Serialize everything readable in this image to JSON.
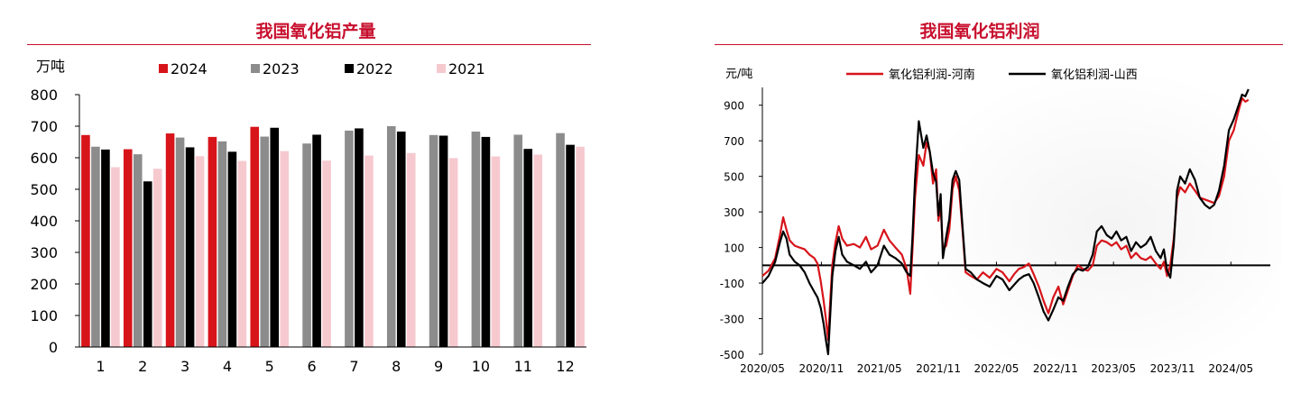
{
  "chart_data": [
    {
      "type": "bar",
      "title": "我国氧化铝产量",
      "ylabel": "万吨",
      "xlabel": "",
      "ylim": [
        0,
        800
      ],
      "yticks": [
        "0",
        "100",
        "200",
        "300",
        "400",
        "500",
        "600",
        "700",
        "800"
      ],
      "categories": [
        "1",
        "2",
        "3",
        "4",
        "5",
        "6",
        "7",
        "8",
        "9",
        "10",
        "11",
        "12"
      ],
      "legend_position": "top",
      "series": [
        {
          "name": "2024",
          "color": "#d7141a",
          "values": [
            672,
            627,
            677,
            666,
            698,
            null,
            null,
            null,
            null,
            null,
            null,
            null
          ]
        },
        {
          "name": "2023",
          "color": "#8c8c8c",
          "values": [
            635,
            611,
            664,
            652,
            667,
            645,
            686,
            700,
            672,
            683,
            673,
            678
          ]
        },
        {
          "name": "2022",
          "color": "#000000",
          "values": [
            626,
            525,
            633,
            619,
            695,
            673,
            693,
            683,
            670,
            666,
            628,
            641
          ]
        },
        {
          "name": "2021",
          "color": "#f6c9cf",
          "values": [
            570,
            565,
            605,
            590,
            621,
            591,
            607,
            615,
            599,
            604,
            610,
            635
          ]
        }
      ]
    },
    {
      "type": "line",
      "title": "我国氧化铝利润",
      "ylabel": "元/吨",
      "xlabel": "",
      "ylim": [
        -500,
        1000
      ],
      "yticks": [
        "-500",
        "-300",
        "-100",
        "100",
        "300",
        "500",
        "700",
        "900"
      ],
      "xlim": [
        "2020-05",
        "2024-09"
      ],
      "xticks": [
        "2020/05",
        "2020/11",
        "2021/05",
        "2021/11",
        "2022/05",
        "2022/11",
        "2023/05",
        "2023/11",
        "2024/05"
      ],
      "legend_position": "top",
      "series": [
        {
          "name": "氧化铝利润-河南",
          "color": "#d7141a",
          "points": [
            [
              "2020-05-01",
              -60
            ],
            [
              "2020-05-20",
              -30
            ],
            [
              "2020-06-10",
              40
            ],
            [
              "2020-06-25",
              170
            ],
            [
              "2020-07-05",
              270
            ],
            [
              "2020-07-15",
              200
            ],
            [
              "2020-07-25",
              140
            ],
            [
              "2020-08-10",
              110
            ],
            [
              "2020-08-25",
              100
            ],
            [
              "2020-09-10",
              90
            ],
            [
              "2020-09-25",
              60
            ],
            [
              "2020-10-10",
              40
            ],
            [
              "2020-10-20",
              10
            ],
            [
              "2020-10-30",
              -90
            ],
            [
              "2020-11-08",
              -200
            ],
            [
              "2020-11-15",
              -300
            ],
            [
              "2020-11-22",
              -420
            ],
            [
              "2020-11-28",
              -220
            ],
            [
              "2020-12-05",
              0
            ],
            [
              "2020-12-15",
              130
            ],
            [
              "2020-12-25",
              220
            ],
            [
              "2021-01-05",
              150
            ],
            [
              "2021-01-20",
              110
            ],
            [
              "2021-02-10",
              120
            ],
            [
              "2021-03-01",
              100
            ],
            [
              "2021-03-20",
              160
            ],
            [
              "2021-04-05",
              90
            ],
            [
              "2021-04-25",
              110
            ],
            [
              "2021-05-15",
              200
            ],
            [
              "2021-06-01",
              140
            ],
            [
              "2021-06-20",
              100
            ],
            [
              "2021-07-10",
              60
            ],
            [
              "2021-07-25",
              -20
            ],
            [
              "2021-08-05",
              -160
            ],
            [
              "2021-08-12",
              80
            ],
            [
              "2021-08-20",
              380
            ],
            [
              "2021-09-01",
              620
            ],
            [
              "2021-09-15",
              560
            ],
            [
              "2021-09-25",
              690
            ],
            [
              "2021-10-05",
              640
            ],
            [
              "2021-10-15",
              460
            ],
            [
              "2021-10-25",
              540
            ],
            [
              "2021-11-01",
              250
            ],
            [
              "2021-11-08",
              330
            ],
            [
              "2021-11-15",
              90
            ],
            [
              "2021-11-25",
              110
            ],
            [
              "2021-12-05",
              200
            ],
            [
              "2021-12-15",
              430
            ],
            [
              "2021-12-25",
              500
            ],
            [
              "2022-01-05",
              420
            ],
            [
              "2022-01-15",
              200
            ],
            [
              "2022-01-25",
              -40
            ],
            [
              "2022-02-10",
              -60
            ],
            [
              "2022-03-01",
              -80
            ],
            [
              "2022-03-20",
              -40
            ],
            [
              "2022-04-10",
              -70
            ],
            [
              "2022-05-01",
              -20
            ],
            [
              "2022-05-20",
              -40
            ],
            [
              "2022-06-10",
              -90
            ],
            [
              "2022-06-25",
              -50
            ],
            [
              "2022-07-10",
              -20
            ],
            [
              "2022-07-25",
              -10
            ],
            [
              "2022-08-10",
              10
            ],
            [
              "2022-08-25",
              -50
            ],
            [
              "2022-09-10",
              -120
            ],
            [
              "2022-09-25",
              -200
            ],
            [
              "2022-10-10",
              -270
            ],
            [
              "2022-10-25",
              -180
            ],
            [
              "2022-11-10",
              -120
            ],
            [
              "2022-11-25",
              -220
            ],
            [
              "2022-12-10",
              -140
            ],
            [
              "2022-12-25",
              -60
            ],
            [
              "2023-01-10",
              0
            ],
            [
              "2023-01-25",
              -20
            ],
            [
              "2023-02-10",
              -30
            ],
            [
              "2023-02-25",
              0
            ],
            [
              "2023-03-10",
              110
            ],
            [
              "2023-03-25",
              140
            ],
            [
              "2023-04-10",
              130
            ],
            [
              "2023-04-25",
              110
            ],
            [
              "2023-05-10",
              130
            ],
            [
              "2023-05-25",
              90
            ],
            [
              "2023-06-10",
              110
            ],
            [
              "2023-06-25",
              40
            ],
            [
              "2023-07-10",
              70
            ],
            [
              "2023-07-25",
              40
            ],
            [
              "2023-08-10",
              30
            ],
            [
              "2023-08-25",
              50
            ],
            [
              "2023-09-10",
              10
            ],
            [
              "2023-09-25",
              -20
            ],
            [
              "2023-10-05",
              20
            ],
            [
              "2023-10-15",
              -60
            ],
            [
              "2023-10-25",
              0
            ],
            [
              "2023-11-05",
              150
            ],
            [
              "2023-11-15",
              380
            ],
            [
              "2023-11-25",
              440
            ],
            [
              "2023-12-10",
              410
            ],
            [
              "2023-12-25",
              460
            ],
            [
              "2024-01-10",
              420
            ],
            [
              "2024-01-25",
              380
            ],
            [
              "2024-02-10",
              370
            ],
            [
              "2024-02-25",
              360
            ],
            [
              "2024-03-10",
              350
            ],
            [
              "2024-03-25",
              390
            ],
            [
              "2024-04-10",
              500
            ],
            [
              "2024-04-25",
              700
            ],
            [
              "2024-05-10",
              760
            ],
            [
              "2024-05-25",
              870
            ],
            [
              "2024-06-05",
              940
            ],
            [
              "2024-06-15",
              920
            ],
            [
              "2024-06-25",
              930
            ]
          ]
        },
        {
          "name": "氧化铝利润-山西",
          "color": "#000000",
          "points": [
            [
              "2020-05-01",
              -100
            ],
            [
              "2020-05-20",
              -60
            ],
            [
              "2020-06-10",
              20
            ],
            [
              "2020-06-25",
              130
            ],
            [
              "2020-07-05",
              190
            ],
            [
              "2020-07-15",
              150
            ],
            [
              "2020-07-25",
              60
            ],
            [
              "2020-08-10",
              20
            ],
            [
              "2020-08-25",
              0
            ],
            [
              "2020-09-10",
              -40
            ],
            [
              "2020-09-25",
              -100
            ],
            [
              "2020-10-10",
              -150
            ],
            [
              "2020-10-20",
              -180
            ],
            [
              "2020-10-30",
              -240
            ],
            [
              "2020-11-08",
              -330
            ],
            [
              "2020-11-15",
              -420
            ],
            [
              "2020-11-22",
              -500
            ],
            [
              "2020-11-28",
              -300
            ],
            [
              "2020-12-05",
              -60
            ],
            [
              "2020-12-15",
              80
            ],
            [
              "2020-12-25",
              160
            ],
            [
              "2021-01-05",
              60
            ],
            [
              "2021-01-20",
              20
            ],
            [
              "2021-02-10",
              0
            ],
            [
              "2021-03-01",
              -20
            ],
            [
              "2021-03-20",
              20
            ],
            [
              "2021-04-05",
              -40
            ],
            [
              "2021-04-25",
              0
            ],
            [
              "2021-05-15",
              110
            ],
            [
              "2021-06-01",
              60
            ],
            [
              "2021-06-20",
              40
            ],
            [
              "2021-07-10",
              10
            ],
            [
              "2021-07-25",
              -40
            ],
            [
              "2021-08-05",
              -60
            ],
            [
              "2021-08-12",
              150
            ],
            [
              "2021-08-20",
              480
            ],
            [
              "2021-09-01",
              810
            ],
            [
              "2021-09-15",
              660
            ],
            [
              "2021-09-25",
              730
            ],
            [
              "2021-10-05",
              640
            ],
            [
              "2021-10-15",
              520
            ],
            [
              "2021-10-25",
              470
            ],
            [
              "2021-11-01",
              280
            ],
            [
              "2021-11-08",
              400
            ],
            [
              "2021-11-15",
              40
            ],
            [
              "2021-11-25",
              160
            ],
            [
              "2021-12-05",
              260
            ],
            [
              "2021-12-15",
              480
            ],
            [
              "2021-12-25",
              530
            ],
            [
              "2022-01-05",
              480
            ],
            [
              "2022-01-15",
              220
            ],
            [
              "2022-01-25",
              -20
            ],
            [
              "2022-02-10",
              -40
            ],
            [
              "2022-03-01",
              -80
            ],
            [
              "2022-03-20",
              -100
            ],
            [
              "2022-04-10",
              -120
            ],
            [
              "2022-05-01",
              -60
            ],
            [
              "2022-05-20",
              -80
            ],
            [
              "2022-06-10",
              -140
            ],
            [
              "2022-06-25",
              -110
            ],
            [
              "2022-07-10",
              -80
            ],
            [
              "2022-07-25",
              -60
            ],
            [
              "2022-08-10",
              -50
            ],
            [
              "2022-08-25",
              -100
            ],
            [
              "2022-09-10",
              -180
            ],
            [
              "2022-09-25",
              -260
            ],
            [
              "2022-10-10",
              -310
            ],
            [
              "2022-10-25",
              -250
            ],
            [
              "2022-11-10",
              -180
            ],
            [
              "2022-11-25",
              -200
            ],
            [
              "2022-12-10",
              -120
            ],
            [
              "2022-12-25",
              -50
            ],
            [
              "2023-01-10",
              -20
            ],
            [
              "2023-01-25",
              -30
            ],
            [
              "2023-02-10",
              -10
            ],
            [
              "2023-02-25",
              60
            ],
            [
              "2023-03-10",
              190
            ],
            [
              "2023-03-25",
              220
            ],
            [
              "2023-04-10",
              170
            ],
            [
              "2023-04-25",
              150
            ],
            [
              "2023-05-10",
              190
            ],
            [
              "2023-05-25",
              140
            ],
            [
              "2023-06-10",
              160
            ],
            [
              "2023-06-25",
              80
            ],
            [
              "2023-07-10",
              130
            ],
            [
              "2023-07-25",
              100
            ],
            [
              "2023-08-10",
              120
            ],
            [
              "2023-08-25",
              160
            ],
            [
              "2023-09-10",
              80
            ],
            [
              "2023-09-25",
              40
            ],
            [
              "2023-10-05",
              90
            ],
            [
              "2023-10-15",
              -30
            ],
            [
              "2023-10-25",
              -70
            ],
            [
              "2023-11-05",
              120
            ],
            [
              "2023-11-15",
              420
            ],
            [
              "2023-11-25",
              500
            ],
            [
              "2023-12-10",
              460
            ],
            [
              "2023-12-25",
              540
            ],
            [
              "2024-01-10",
              480
            ],
            [
              "2024-01-25",
              380
            ],
            [
              "2024-02-10",
              340
            ],
            [
              "2024-02-25",
              320
            ],
            [
              "2024-03-10",
              340
            ],
            [
              "2024-03-25",
              420
            ],
            [
              "2024-04-10",
              560
            ],
            [
              "2024-04-25",
              760
            ],
            [
              "2024-05-10",
              820
            ],
            [
              "2024-05-25",
              900
            ],
            [
              "2024-06-05",
              960
            ],
            [
              "2024-06-15",
              950
            ],
            [
              "2024-06-25",
              990
            ]
          ]
        }
      ]
    }
  ]
}
